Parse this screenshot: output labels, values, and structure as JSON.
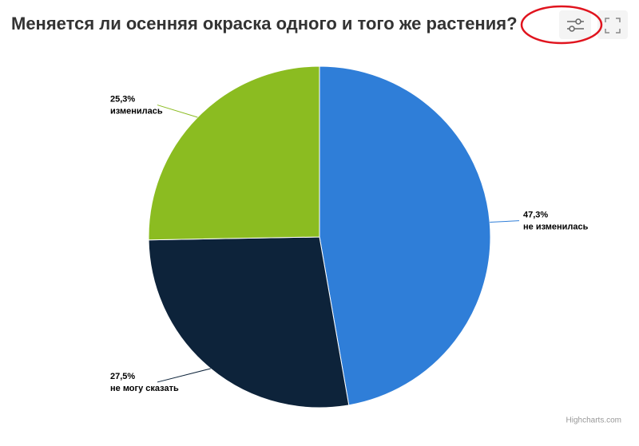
{
  "chart_data": {
    "type": "pie",
    "title": "Меняется ли осенняя окраска одного и того же растения?",
    "categories": [
      "не изменилась",
      "не могу сказать",
      "изменилась"
    ],
    "values": [
      47.3,
      27.5,
      25.3
    ],
    "value_labels": [
      "47,3%",
      "27,5%",
      "25,3%"
    ],
    "colors": [
      "#2f7ed8",
      "#0d233a",
      "#8bbc21"
    ],
    "credits": "Highcharts.com"
  }
}
